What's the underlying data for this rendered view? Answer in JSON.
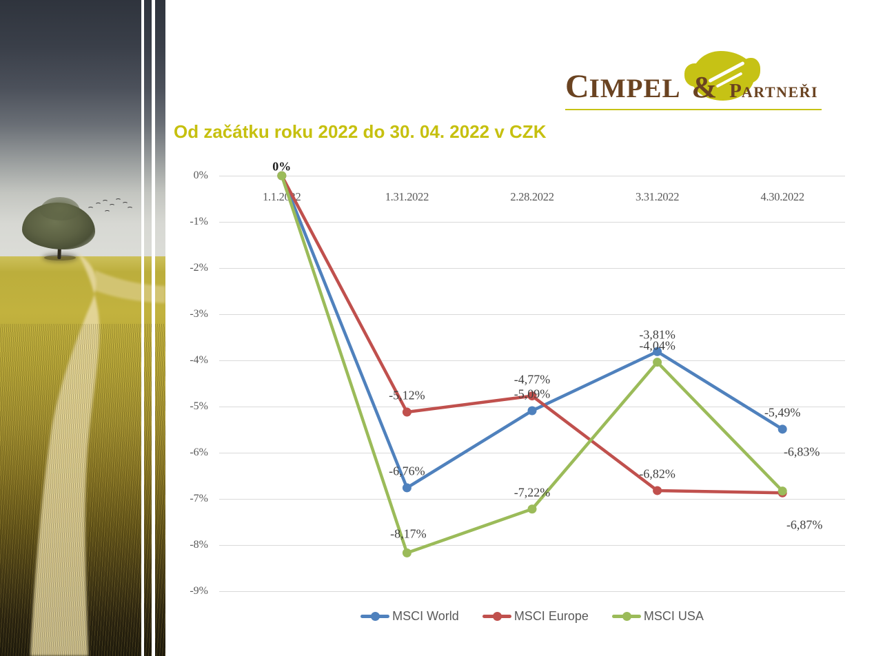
{
  "slide": {
    "title": "Od začátku roku 2022 do 30. 04. 2022 v CZK"
  },
  "logo": {
    "name_main": "CIMPEL",
    "ampersand": "&",
    "name_sub": "PARTNEŘI",
    "brand_brown": "#6A4321",
    "brand_yellow": "#C6C215"
  },
  "chart_data": {
    "type": "line",
    "title": "",
    "categories": [
      "1.1.2022",
      "1.31.2022",
      "2.28.2022",
      "3.31.2022",
      "4.30.2022"
    ],
    "series": [
      {
        "name": "MSCI World",
        "color": "#4F81BD",
        "values": [
          0,
          -6.76,
          -5.09,
          -3.81,
          -5.49
        ],
        "labels": [
          "0%",
          "-6,76%",
          "-5,09%",
          "-3,81%",
          "-5,49%"
        ]
      },
      {
        "name": "MSCI Europe",
        "color": "#C0504D",
        "values": [
          0,
          -5.12,
          -4.77,
          -6.82,
          -6.87
        ],
        "labels": [
          "",
          "-5,12%",
          "-4,77%",
          "-6,82%",
          "-6,87%"
        ]
      },
      {
        "name": "MSCI USA",
        "color": "#9BBB59",
        "values": [
          0,
          -8.17,
          -7.22,
          -4.04,
          -6.83
        ],
        "labels": [
          "",
          "-8,17%",
          "-7,22%",
          "-4,04%",
          "-6,83%"
        ]
      }
    ],
    "ylim": [
      -9,
      0
    ],
    "ytick_labels": [
      "0%",
      "-1%",
      "-2%",
      "-3%",
      "-4%",
      "-5%",
      "-6%",
      "-7%",
      "-8%",
      "-9%"
    ],
    "grid": true,
    "legend_position": "bottom",
    "decimal_separator": ","
  }
}
